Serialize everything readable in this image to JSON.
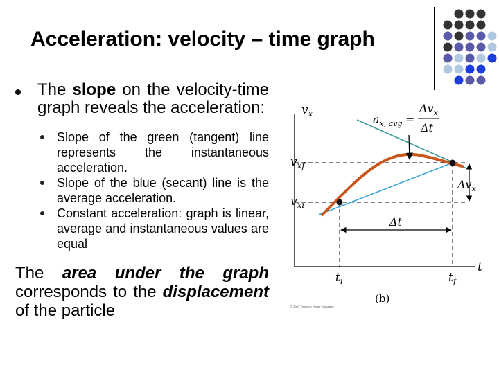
{
  "slide": {
    "title": "Acceleration: velocity – time graph",
    "bullet1": {
      "prefix": "The ",
      "emphasis": "slope",
      "suffix": " on the velocity-time graph reveals the acceleration:"
    },
    "subbullets": [
      "Slope of the green (tangent) line represents the instantaneous acceleration.",
      "Slope of the blue (secant) line is the average acceleration.",
      "Constant acceleration: graph is linear, average and instantaneous values are equal"
    ],
    "paragraph": {
      "prefix": "The ",
      "emphasis": "area under the graph",
      "middle": " corresponds to the ",
      "emphasis2": "displacement",
      "suffix": " of the particle"
    }
  },
  "figure": {
    "y_axis_label": "v",
    "y_axis_sub": "x",
    "x_axis_label": "t",
    "vxf_label": "v",
    "vxf_sub": "xf",
    "vxi_label": "v",
    "vxi_sub": "xi",
    "ti_label": "t",
    "ti_sub": "i",
    "tf_label": "t",
    "tf_sub": "f",
    "formula_lhs": "a",
    "formula_lhs_sub": "x, avg",
    "formula_eq": "=",
    "formula_num": "Δv",
    "formula_num_sub": "x",
    "formula_den": "Δt",
    "delta_vx": "Δv",
    "delta_vx_sub": "x",
    "delta_t": "Δt",
    "panel_label": "(b)",
    "copyright": "© 2007 Thomson Higher Education",
    "colors": {
      "curve": "#c8551a",
      "tangent": "#3c9a9a",
      "secant": "#3aa6d8"
    }
  },
  "decor": {
    "dot_colors": [
      "#333333",
      "#5a5aa8",
      "#b0c8e0",
      "#1f3cdc"
    ]
  }
}
